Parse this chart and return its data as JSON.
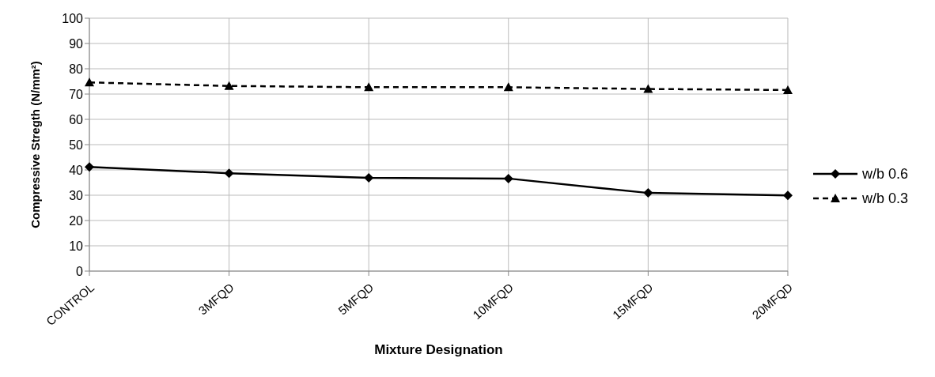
{
  "chart_data": {
    "type": "line",
    "xlabel": "Mixture Designation",
    "ylabel": "Compressive Stregth (N/mm²)",
    "categories": [
      "CONTROL",
      "3MFQD",
      "5MFQD",
      "10MFQD",
      "15MFQD",
      "20MFQD"
    ],
    "series": [
      {
        "name": "w/b 0.6",
        "color": "#000000",
        "values": [
          41.2,
          38.7,
          36.9,
          36.6,
          30.9,
          29.9
        ],
        "marker": "diamond",
        "line_style": "solid"
      },
      {
        "name": "w/b 0.3",
        "color": "#000000",
        "values": [
          74.6,
          73.2,
          72.7,
          72.7,
          72.0,
          71.6
        ],
        "marker": "triangle",
        "line_style": "dashed"
      }
    ],
    "ylim": [
      0,
      100
    ],
    "yticks": [
      0,
      10,
      20,
      30,
      40,
      50,
      60,
      70,
      80,
      90,
      100
    ],
    "grid": true,
    "legend": "right"
  }
}
